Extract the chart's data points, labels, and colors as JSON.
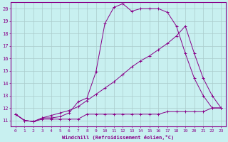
{
  "xlabel": "Windchill (Refroidissement éolien,°C)",
  "bg_color": "#c8f0f0",
  "line_color": "#880088",
  "grid_color": "#aacccc",
  "xlim": [
    -0.5,
    23.5
  ],
  "ylim": [
    10.5,
    20.5
  ],
  "yticks": [
    11,
    12,
    13,
    14,
    15,
    16,
    17,
    18,
    19,
    20
  ],
  "xticks": [
    0,
    1,
    2,
    3,
    4,
    5,
    6,
    7,
    8,
    9,
    10,
    11,
    12,
    13,
    14,
    15,
    16,
    17,
    18,
    19,
    20,
    21,
    22,
    23
  ],
  "line1_x": [
    0,
    1,
    2,
    3,
    4,
    5,
    6,
    7,
    8,
    9,
    10,
    11,
    12,
    13,
    14,
    15,
    16,
    17,
    18,
    19,
    20,
    21,
    22,
    23
  ],
  "line1_y": [
    11.5,
    11.0,
    10.9,
    11.1,
    11.1,
    11.1,
    11.1,
    11.1,
    11.5,
    11.5,
    11.5,
    11.5,
    11.5,
    11.5,
    11.5,
    11.5,
    11.5,
    11.7,
    11.7,
    11.7,
    11.7,
    11.7,
    12.0,
    12.0
  ],
  "line2_x": [
    0,
    1,
    2,
    3,
    4,
    5,
    6,
    7,
    8,
    9,
    10,
    11,
    12,
    13,
    14,
    15,
    16,
    17,
    18,
    19,
    20,
    21,
    22,
    23
  ],
  "line2_y": [
    11.5,
    11.0,
    10.9,
    11.2,
    11.2,
    11.3,
    11.6,
    12.5,
    12.8,
    14.9,
    18.8,
    20.1,
    20.4,
    19.8,
    20.0,
    20.0,
    20.0,
    19.7,
    18.6,
    16.4,
    14.4,
    13.0,
    12.0,
    12.0
  ],
  "line3_x": [
    0,
    1,
    2,
    3,
    4,
    5,
    6,
    7,
    8,
    9,
    10,
    11,
    12,
    13,
    14,
    15,
    16,
    17,
    18,
    19,
    20,
    21,
    22,
    23
  ],
  "line3_y": [
    11.5,
    11.0,
    10.9,
    11.2,
    11.4,
    11.6,
    11.8,
    12.1,
    12.6,
    13.1,
    13.6,
    14.1,
    14.7,
    15.3,
    15.8,
    16.2,
    16.7,
    17.2,
    17.8,
    18.6,
    16.4,
    14.4,
    13.0,
    12.0
  ]
}
